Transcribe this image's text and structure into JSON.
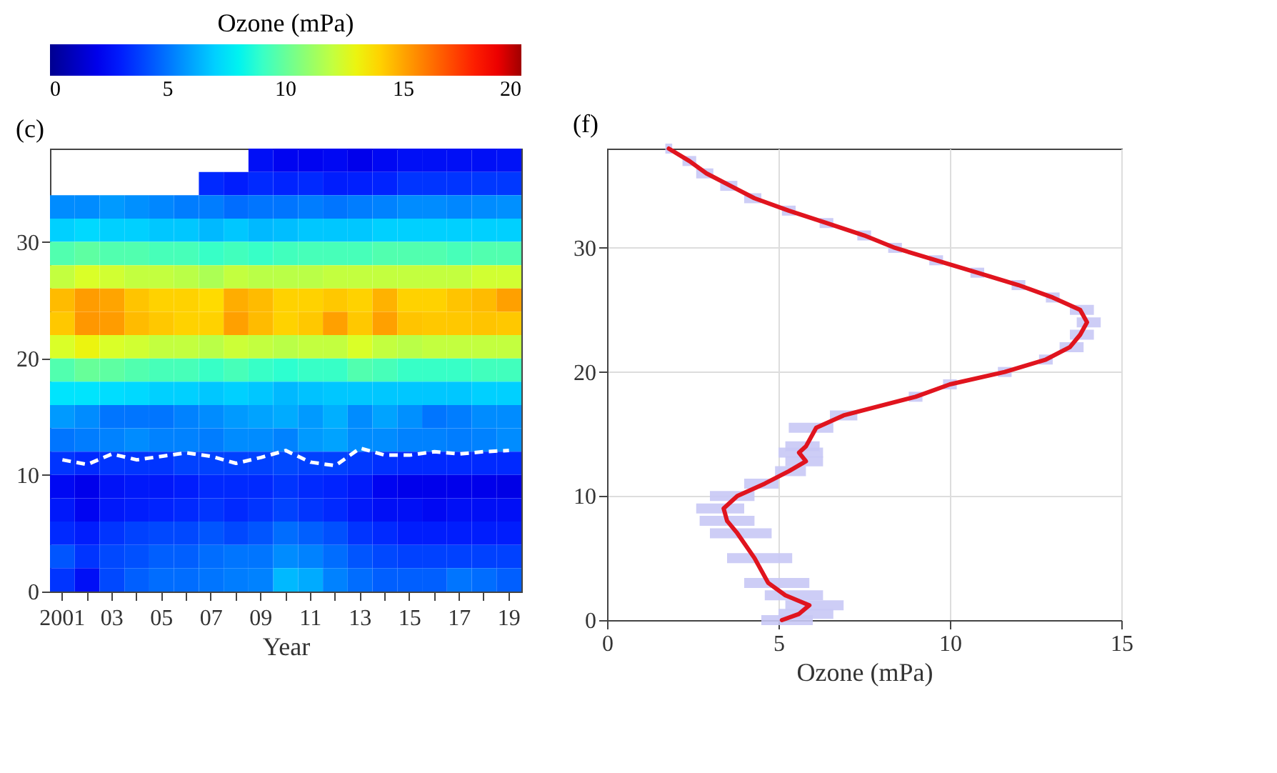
{
  "chart_data": [
    {
      "type": "heatmap",
      "title": "(c)",
      "xlabel": "Year",
      "clabel": "Ozone (mPa)",
      "clim": [
        0,
        20
      ],
      "cticks": [
        0,
        5,
        10,
        15,
        20
      ],
      "ylim": [
        0,
        38
      ],
      "yticks": [
        0,
        10,
        20,
        30
      ],
      "categories": [
        "2001",
        null,
        "03",
        null,
        "05",
        null,
        "07",
        null,
        "09",
        null,
        "11",
        null,
        "13",
        null,
        "15",
        null,
        "17",
        null,
        "19"
      ],
      "cells": [
        [
          null,
          null,
          null,
          null,
          null,
          null,
          null,
          null,
          2.5,
          2.2,
          2.2,
          2.3,
          2.0,
          2.3,
          2.5,
          2.5,
          2.5,
          2.5,
          2.6
        ],
        [
          null,
          null,
          null,
          null,
          null,
          null,
          3.3,
          3.0,
          3.3,
          3.2,
          3.3,
          3.0,
          3.1,
          3.2,
          3.5,
          3.5,
          3.5,
          3.6,
          3.6
        ],
        [
          5.5,
          5.5,
          5.8,
          5.6,
          5.4,
          5.2,
          5.2,
          4.8,
          5.0,
          5.0,
          5.2,
          5.0,
          5.2,
          5.3,
          5.5,
          5.5,
          5.4,
          5.5,
          5.6
        ],
        [
          7.0,
          7.2,
          7.0,
          7.0,
          6.8,
          6.8,
          6.5,
          6.8,
          6.5,
          6.6,
          6.8,
          6.8,
          6.8,
          7.0,
          7.0,
          7.0,
          7.0,
          7.0,
          7.0
        ],
        [
          9.5,
          9.8,
          9.5,
          9.5,
          9.3,
          9.3,
          9.0,
          9.2,
          9.0,
          9.2,
          9.3,
          9.3,
          9.3,
          9.5,
          9.5,
          9.5,
          9.3,
          9.5,
          9.5
        ],
        [
          12.0,
          12.5,
          12.3,
          12.0,
          12.0,
          11.8,
          11.5,
          12.0,
          11.8,
          11.8,
          11.8,
          12.0,
          12.0,
          12.0,
          12.0,
          12.0,
          12.0,
          12.3,
          12.3
        ],
        [
          14.5,
          15.2,
          15.0,
          14.3,
          14.0,
          14.0,
          13.8,
          14.8,
          14.5,
          14.0,
          14.0,
          14.2,
          14.0,
          14.7,
          14.0,
          14.0,
          14.3,
          14.5,
          15.1
        ],
        [
          14.2,
          15.3,
          15.2,
          14.5,
          14.2,
          14.0,
          14.0,
          15.1,
          14.5,
          14.0,
          14.2,
          15.1,
          14.2,
          15.1,
          14.3,
          14.2,
          14.2,
          14.3,
          14.2
        ],
        [
          12.5,
          13.0,
          12.5,
          12.3,
          12.0,
          12.0,
          11.8,
          12.2,
          12.0,
          11.8,
          12.0,
          12.0,
          12.5,
          12.0,
          11.8,
          12.0,
          12.0,
          12.0,
          12.0
        ],
        [
          9.5,
          10.0,
          9.8,
          9.5,
          9.3,
          9.3,
          9.0,
          9.3,
          9.0,
          8.8,
          9.0,
          9.0,
          9.5,
          9.3,
          9.0,
          9.0,
          9.0,
          9.2,
          9.2
        ],
        [
          7.5,
          7.5,
          7.3,
          7.2,
          7.0,
          7.0,
          6.8,
          7.0,
          6.8,
          6.5,
          6.7,
          6.8,
          6.8,
          6.8,
          6.8,
          6.8,
          6.8,
          7.0,
          7.0
        ],
        [
          5.8,
          5.5,
          5.0,
          5.0,
          5.0,
          5.3,
          5.5,
          5.8,
          6.0,
          6.2,
          5.8,
          6.3,
          5.5,
          6.0,
          5.6,
          5.0,
          5.2,
          5.5,
          5.5
        ],
        [
          5.0,
          5.2,
          5.3,
          5.5,
          5.3,
          5.3,
          5.2,
          5.5,
          5.5,
          5.3,
          5.8,
          6.0,
          5.5,
          5.5,
          5.3,
          5.3,
          5.2,
          5.3,
          5.5
        ],
        [
          3.5,
          3.3,
          3.5,
          3.5,
          3.5,
          3.8,
          3.8,
          3.8,
          3.8,
          4.0,
          3.8,
          3.8,
          3.6,
          3.4,
          3.3,
          3.3,
          3.3,
          3.3,
          3.3
        ],
        [
          2.3,
          2.0,
          2.6,
          2.8,
          2.8,
          3.0,
          3.3,
          3.3,
          3.3,
          3.5,
          3.3,
          3.2,
          2.8,
          2.2,
          2.0,
          2.0,
          2.0,
          2.0,
          1.9
        ],
        [
          2.8,
          2.2,
          2.8,
          3.0,
          3.2,
          3.3,
          3.5,
          3.3,
          3.5,
          3.8,
          3.5,
          3.3,
          2.8,
          2.5,
          2.5,
          2.3,
          2.5,
          2.5,
          2.5
        ],
        [
          3.3,
          3.0,
          3.5,
          3.8,
          4.0,
          4.0,
          4.3,
          4.0,
          4.3,
          4.8,
          4.5,
          4.2,
          3.5,
          3.3,
          3.0,
          3.0,
          3.0,
          3.0,
          3.0
        ],
        [
          4.3,
          3.5,
          4.0,
          4.2,
          4.5,
          4.5,
          4.8,
          5.0,
          5.0,
          5.5,
          5.3,
          4.8,
          4.3,
          4.0,
          3.8,
          3.8,
          3.8,
          3.8,
          3.8
        ],
        [
          3.5,
          2.5,
          4.0,
          4.5,
          4.8,
          4.8,
          5.0,
          5.2,
          5.3,
          6.5,
          6.2,
          5.3,
          4.8,
          4.5,
          4.5,
          4.5,
          5.0,
          4.8,
          4.5
        ]
      ],
      "series": [
        {
          "type": "line",
          "color": "#ffffff",
          "line_style": "dashed",
          "values": [
            11.3,
            10.9,
            11.8,
            11.3,
            11.6,
            11.9,
            11.6,
            11.0,
            11.5,
            12.1,
            11.1,
            10.8,
            12.3,
            11.7,
            11.7,
            12.0,
            11.8,
            12.0,
            12.1
          ]
        }
      ]
    },
    {
      "type": "line",
      "title": "(f)",
      "xlabel": "Ozone (mPa)",
      "xlim": [
        0,
        15
      ],
      "xticks": [
        0,
        5,
        10,
        15
      ],
      "ylim": [
        0,
        38
      ],
      "yticks": [
        0,
        10,
        20,
        30
      ],
      "grid": true,
      "line_style": "solid",
      "series": [
        {
          "color": "#e0141e",
          "x": [
            5.1,
            5.6,
            5.9,
            5.2,
            4.7,
            4.3,
            3.8,
            3.5,
            3.4,
            3.8,
            4.6,
            5.3,
            5.8,
            5.6,
            5.8,
            6.1,
            6.9,
            9.0,
            10.0,
            11.6,
            12.8,
            13.5,
            13.8,
            14.0,
            13.8,
            13.0,
            12.0,
            10.8,
            9.6,
            8.4,
            7.5,
            6.4,
            5.3,
            4.3,
            3.6,
            2.9,
            2.4,
            1.8
          ],
          "values": [
            0,
            0.5,
            1.2,
            2,
            3,
            5,
            7,
            8,
            9,
            10,
            11,
            12,
            12.8,
            13.5,
            14,
            15.5,
            16.5,
            18,
            19,
            20,
            21,
            22,
            23,
            24,
            25,
            26,
            27,
            28,
            29,
            30,
            31,
            32,
            33,
            34,
            35,
            36,
            37,
            38
          ],
          "xerrors": [
            [
              4.5,
              6.0
            ],
            [
              5.0,
              6.6
            ],
            [
              5.2,
              6.9
            ],
            [
              4.6,
              6.3
            ],
            [
              4.0,
              5.9
            ],
            [
              3.5,
              5.4
            ],
            [
              3.0,
              4.8
            ],
            [
              2.7,
              4.3
            ],
            [
              2.6,
              4.0
            ],
            [
              3.0,
              4.3
            ],
            [
              4.0,
              5.0
            ],
            [
              4.9,
              5.8
            ],
            [
              5.2,
              6.3
            ],
            [
              5.0,
              6.3
            ],
            [
              5.2,
              6.2
            ],
            [
              5.3,
              6.6
            ],
            [
              6.5,
              7.3
            ],
            [
              8.8,
              9.2
            ],
            [
              9.8,
              10.2
            ],
            [
              11.4,
              11.8
            ],
            [
              12.6,
              13.0
            ],
            [
              13.2,
              13.9
            ],
            [
              13.5,
              14.2
            ],
            [
              13.7,
              14.4
            ],
            [
              13.5,
              14.2
            ],
            [
              12.8,
              13.2
            ],
            [
              11.8,
              12.2
            ],
            [
              10.6,
              11.0
            ],
            [
              9.4,
              9.8
            ],
            [
              8.2,
              8.6
            ],
            [
              7.3,
              7.7
            ],
            [
              6.2,
              6.6
            ],
            [
              5.1,
              5.5
            ],
            [
              4.0,
              4.5
            ],
            [
              3.3,
              3.8
            ],
            [
              2.6,
              3.1
            ],
            [
              2.2,
              2.6
            ],
            [
              1.7,
              1.9
            ]
          ]
        }
      ]
    }
  ]
}
